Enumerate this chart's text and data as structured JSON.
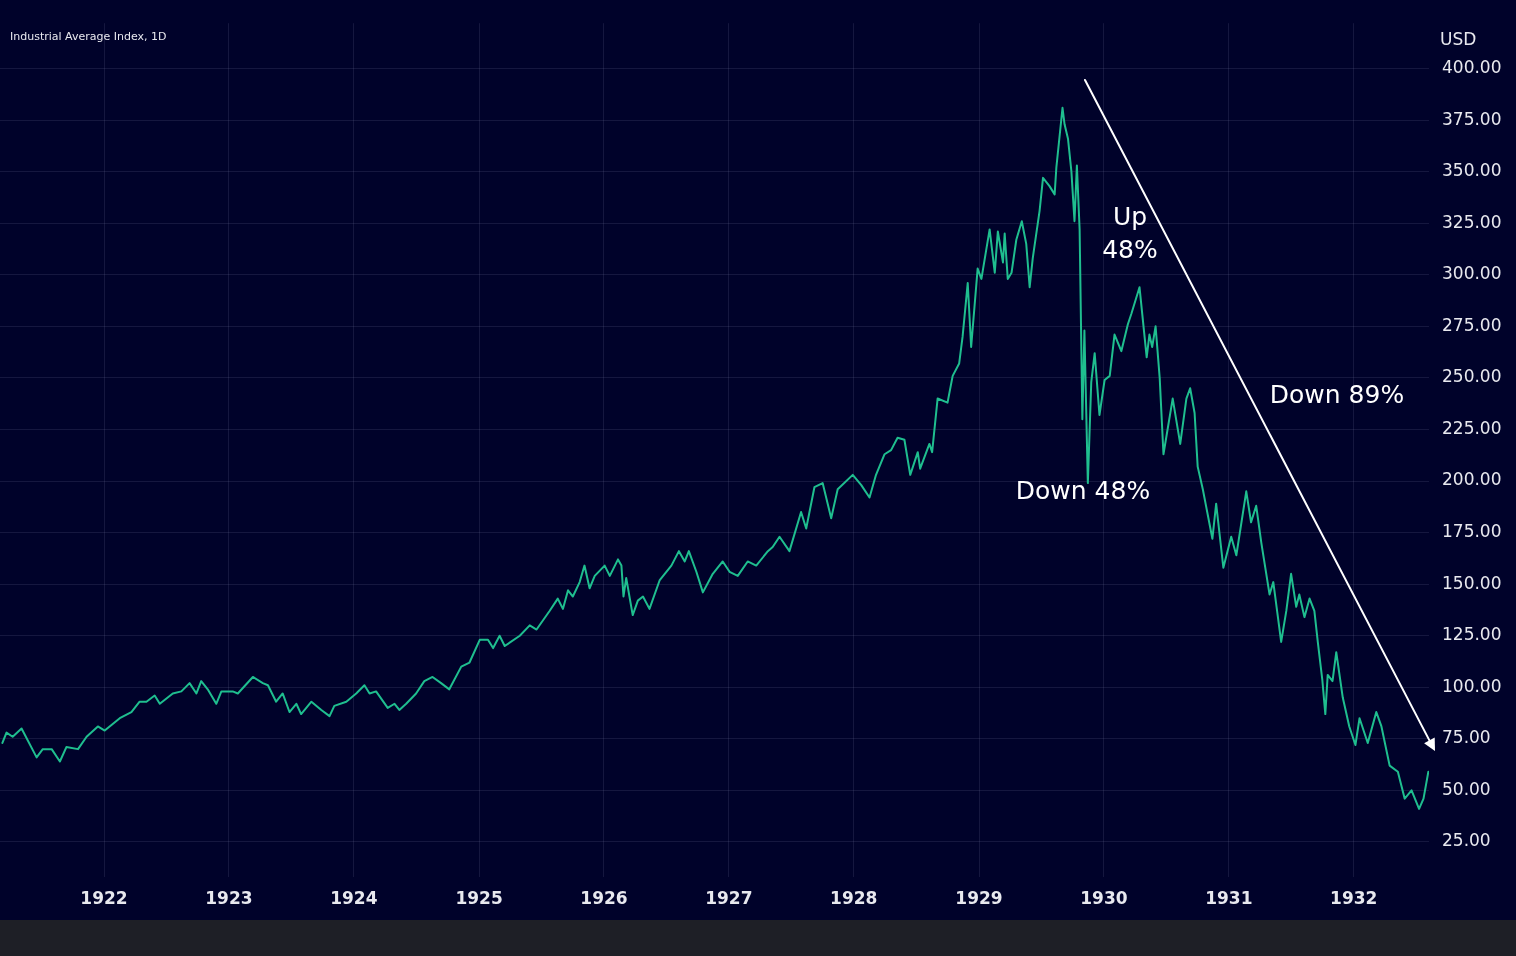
{
  "chart_data": {
    "type": "line",
    "title": "Industrial Average Index, 1D",
    "ylabel": "USD",
    "color": "#1fbe8f",
    "marker": "none",
    "grid": true,
    "xlim": [
      "1921-03-03",
      "1932-08-08"
    ],
    "xticks": [
      "1922",
      "1923",
      "1924",
      "1925",
      "1926",
      "1927",
      "1928",
      "1929",
      "1930",
      "1931",
      "1932"
    ],
    "ylim": [
      8,
      422
    ],
    "yticks": [
      {
        "value": 25,
        "label": "25.00"
      },
      {
        "value": 50,
        "label": "50.00"
      },
      {
        "value": 75,
        "label": "75.00"
      },
      {
        "value": 100,
        "label": "100.00"
      },
      {
        "value": 125,
        "label": "125.00"
      },
      {
        "value": 150,
        "label": "150.00"
      },
      {
        "value": 175,
        "label": "175.00"
      },
      {
        "value": 200,
        "label": "200.00"
      },
      {
        "value": 225,
        "label": "225.00"
      },
      {
        "value": 250,
        "label": "250.00"
      },
      {
        "value": 275,
        "label": "275.00"
      },
      {
        "value": 300,
        "label": "300.00"
      },
      {
        "value": 325,
        "label": "325.00"
      },
      {
        "value": 350,
        "label": "350.00"
      },
      {
        "value": 375,
        "label": "375.00"
      },
      {
        "value": 400,
        "label": "400.00"
      }
    ],
    "annotations": [
      "Up\n48%",
      "Down 48%",
      "Down 89%"
    ],
    "x": [
      "1921-03-10",
      "1921-03-22",
      "1921-04-09",
      "1921-05-05",
      "1921-06-18",
      "1921-07-06",
      "1921-08-01",
      "1921-08-25",
      "1921-09-13",
      "1921-10-17",
      "1921-11-11",
      "1921-12-14",
      "1922-01-03",
      "1922-02-16",
      "1922-03-22",
      "1922-04-15",
      "1922-05-05",
      "1922-05-29",
      "1922-06-13",
      "1922-07-21",
      "1922-08-15",
      "1922-09-08",
      "1922-09-28",
      "1922-10-12",
      "1922-10-31",
      "1922-11-25",
      "1922-12-10",
      "1923-01-12",
      "1923-01-27",
      "1923-03-12",
      "1923-04-10",
      "1923-04-25",
      "1923-05-19",
      "1923-06-07",
      "1923-06-27",
      "1923-07-17",
      "1923-07-31",
      "1923-08-30",
      "1923-09-28",
      "1923-10-22",
      "1923-11-05",
      "1923-12-10",
      "1924-01-08",
      "1924-02-01",
      "1924-02-16",
      "1924-03-06",
      "1924-04-09",
      "1924-04-29",
      "1924-05-13",
      "1924-06-02",
      "1924-07-01",
      "1924-07-25",
      "1924-08-18",
      "1924-09-12",
      "1924-10-06",
      "1924-11-10",
      "1924-12-04",
      "1925-01-03",
      "1925-01-27",
      "1925-02-11",
      "1925-03-02",
      "1925-03-17",
      "1925-04-30",
      "1925-05-29",
      "1925-06-18",
      "1925-07-26",
      "1925-08-19",
      "1925-09-03",
      "1925-09-18",
      "1925-10-02",
      "1925-10-22",
      "1925-11-05",
      "1925-11-20",
      "1925-12-05",
      "1926-01-03",
      "1926-01-18",
      "1926-02-11",
      "1926-02-21",
      "1926-02-27",
      "1926-03-07",
      "1926-03-26",
      "1926-04-10",
      "1926-04-25",
      "1926-05-14",
      "1926-06-13",
      "1926-07-17",
      "1926-08-08",
      "1926-08-25",
      "1926-09-06",
      "1926-09-28",
      "1926-10-17",
      "1926-11-15",
      "1926-12-14",
      "1927-01-03",
      "1927-01-27",
      "1927-02-25",
      "1927-03-22",
      "1927-04-25",
      "1927-05-09",
      "1927-05-29",
      "1927-06-27",
      "1927-07-31",
      "1927-08-15",
      "1927-09-08",
      "1927-10-02",
      "1927-10-27",
      "1927-11-15",
      "1927-12-29",
      "1928-01-23",
      "1928-02-16",
      "1928-03-06",
      "1928-03-31",
      "1928-04-19",
      "1928-05-08",
      "1928-05-28",
      "1928-06-14",
      "1928-07-06",
      "1928-07-13",
      "1928-08-09",
      "1928-08-17",
      "1928-09-02",
      "1928-10-01",
      "1928-10-16",
      "1928-11-04",
      "1928-11-14",
      "1928-11-29",
      "1928-12-09",
      "1928-12-28",
      "1929-01-08",
      "1929-02-01",
      "1929-02-16",
      "1929-02-25",
      "1929-03-12",
      "1929-03-17",
      "1929-03-26",
      "1929-04-06",
      "1929-04-20",
      "1929-05-06",
      "1929-05-19",
      "1929-05-29",
      "1929-06-07",
      "1929-06-27",
      "1929-07-07",
      "1929-07-26",
      "1929-08-10",
      "1929-08-15",
      "1929-09-02",
      "1929-09-08",
      "1929-09-18",
      "1929-09-28",
      "1929-10-07",
      "1929-10-14",
      "1929-10-22",
      "1929-10-30",
      "1929-11-05",
      "1929-11-15",
      "1929-11-25",
      "1929-12-05",
      "1929-12-19",
      "1930-01-03",
      "1930-01-18",
      "1930-02-01",
      "1930-02-21",
      "1930-03-12",
      "1930-03-22",
      "1930-04-15",
      "1930-05-06",
      "1930-05-14",
      "1930-05-22",
      "1930-06-01",
      "1930-06-13",
      "1930-06-24",
      "1930-07-02",
      "1930-07-21",
      "1930-08-12",
      "1930-08-30",
      "1930-09-10",
      "1930-09-23",
      "1930-10-02",
      "1930-10-17",
      "1930-10-31",
      "1930-11-14",
      "1930-11-25",
      "1930-12-16",
      "1931-01-08",
      "1931-01-23",
      "1931-02-21",
      "1931-03-07",
      "1931-03-22",
      "1931-04-06",
      "1931-04-30",
      "1931-05-11",
      "1931-06-03",
      "1931-06-18",
      "1931-07-02",
      "1931-07-17",
      "1931-07-26",
      "1931-08-10",
      "1931-08-25",
      "1931-09-08",
      "1931-09-18",
      "1931-10-01",
      "1931-10-10",
      "1931-10-17",
      "1931-10-31",
      "1931-11-11",
      "1931-11-30",
      "1931-12-19",
      "1932-01-06",
      "1932-01-18",
      "1932-02-11",
      "1932-03-07",
      "1932-03-22",
      "1932-04-15",
      "1932-05-09",
      "1932-05-29",
      "1932-06-18",
      "1932-07-10",
      "1932-07-23",
      "1932-08-06"
    ],
    "values": [
      73,
      78,
      76,
      80,
      66,
      70,
      70,
      64,
      71,
      70,
      76,
      81,
      79,
      85,
      88,
      93,
      93,
      96,
      92,
      97,
      98,
      102,
      97,
      103,
      99,
      92,
      98,
      98,
      97,
      105,
      102,
      101,
      93,
      97,
      88,
      92,
      87,
      93,
      89,
      86,
      91,
      93,
      97,
      101,
      97,
      98,
      90,
      92,
      89,
      92,
      97,
      103,
      105,
      102,
      99,
      110,
      112,
      123,
      123,
      119,
      125,
      120,
      125,
      130,
      128,
      137,
      143,
      138,
      147,
      144,
      151,
      159,
      148,
      154,
      159,
      154,
      162,
      159,
      144,
      153,
      135,
      142,
      144,
      138,
      152,
      159,
      166,
      161,
      166,
      156,
      146,
      155,
      161,
      156,
      154,
      161,
      159,
      166,
      168,
      173,
      166,
      185,
      177,
      197,
      199,
      182,
      196,
      203,
      198,
      192,
      203,
      213,
      215,
      221,
      220,
      203,
      214,
      206,
      218,
      214,
      240,
      238,
      251,
      257,
      270,
      296,
      265,
      303,
      298,
      322,
      301,
      321,
      306,
      320,
      298,
      301,
      317,
      326,
      315,
      294,
      308,
      331,
      347,
      343,
      339,
      352,
      381,
      373,
      366,
      350,
      326,
      353,
      322,
      230,
      273,
      199,
      248,
      262,
      232,
      249,
      251,
      271,
      263,
      276,
      281,
      294,
      260,
      271,
      265,
      275,
      250,
      213,
      221,
      240,
      218,
      240,
      245,
      233,
      207,
      196,
      184,
      172,
      189,
      158,
      173,
      164,
      195,
      180,
      188,
      170,
      145,
      151,
      122,
      137,
      155,
      139,
      145,
      134,
      143,
      137,
      122,
      104,
      87,
      106,
      103,
      117,
      95,
      81,
      72,
      85,
      73,
      88,
      81,
      62,
      59,
      46,
      50,
      41,
      46,
      59
    ]
  }
}
